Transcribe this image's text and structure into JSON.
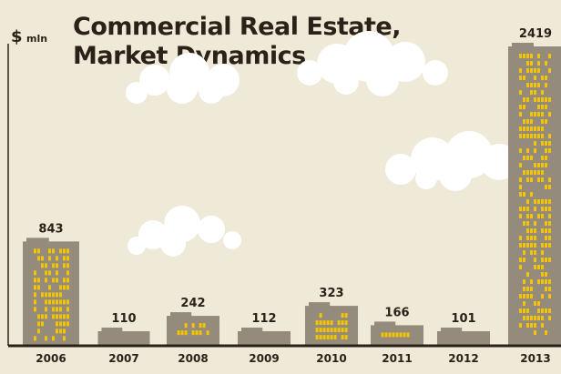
{
  "header": {
    "title_line_1": "Commercial Real Estate,",
    "title_line_2": "Market Dynamics",
    "unit_symbol": "$",
    "unit_label": "mln"
  },
  "colors": {
    "background": "#efe9d7",
    "building": "#958b7c",
    "window": "#f2c500",
    "axis": "#2b2118",
    "cloud": "#ffffff",
    "text": "#2b2118"
  },
  "chart_data": {
    "type": "bar",
    "title": "Commercial Real Estate, Market Dynamics",
    "ylabel": "$ mln",
    "categories": [
      "2006",
      "2007",
      "2008",
      "2009",
      "2010",
      "2011",
      "2012",
      "2013"
    ],
    "values": [
      843,
      110,
      242,
      112,
      323,
      166,
      101,
      2419
    ],
    "value_labels": [
      "843",
      "110",
      "242",
      "112",
      "323",
      "166",
      "101",
      "2419"
    ],
    "ylim": [
      0,
      2500
    ],
    "grid": false,
    "legend": "none"
  }
}
